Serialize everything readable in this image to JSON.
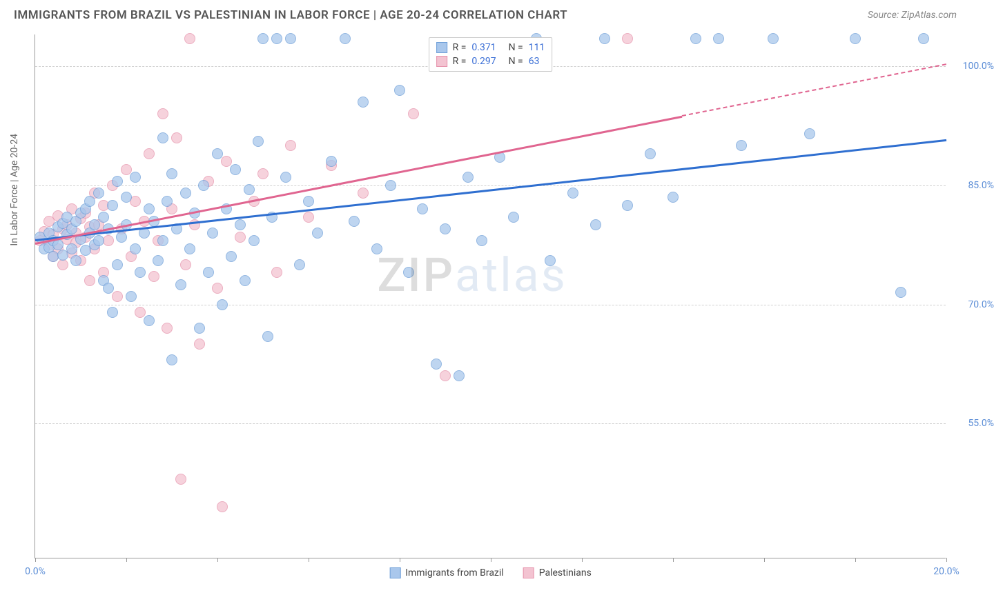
{
  "header": {
    "title": "IMMIGRANTS FROM BRAZIL VS PALESTINIAN IN LABOR FORCE | AGE 20-24 CORRELATION CHART",
    "source": "Source: ZipAtlas.com"
  },
  "chart": {
    "type": "scatter",
    "ylabel": "In Labor Force | Age 20-24",
    "xlim": [
      0,
      20
    ],
    "ylim": [
      38,
      104
    ],
    "xtick_positions": [
      0,
      2,
      4,
      6,
      8,
      10,
      12,
      14,
      16,
      18,
      20
    ],
    "xtick_labels": {
      "0": "0.0%",
      "20": "20.0%"
    },
    "ytick_positions": [
      55,
      70,
      85,
      100
    ],
    "ytick_labels": {
      "55": "55.0%",
      "70": "70.0%",
      "85": "85.0%",
      "100": "100.0%"
    },
    "grid_color": "#d0d0d0",
    "background_color": "#ffffff",
    "axis_color": "#999999",
    "label_color": "#5b8dd6",
    "watermark": {
      "text_dark": "ZIP",
      "text_light": "atlas"
    },
    "series": [
      {
        "name": "Immigrants from Brazil",
        "fill": "#a9c7ec",
        "stroke": "#6f9fd8",
        "trend_color": "#2f6fd0",
        "trend": {
          "x1": 0,
          "y1": 78.2,
          "x2": 20,
          "y2": 90.8
        },
        "r_value": "0.371",
        "n_value": "111",
        "points": [
          [
            0.1,
            78.5
          ],
          [
            0.2,
            77.0
          ],
          [
            0.3,
            79.0
          ],
          [
            0.3,
            77.2
          ],
          [
            0.4,
            78.0
          ],
          [
            0.4,
            76.0
          ],
          [
            0.5,
            79.8
          ],
          [
            0.5,
            77.5
          ],
          [
            0.6,
            80.2
          ],
          [
            0.6,
            76.2
          ],
          [
            0.7,
            81.0
          ],
          [
            0.7,
            78.8
          ],
          [
            0.8,
            77.0
          ],
          [
            0.8,
            79.5
          ],
          [
            0.9,
            80.5
          ],
          [
            0.9,
            75.5
          ],
          [
            1.0,
            81.5
          ],
          [
            1.0,
            78.2
          ],
          [
            1.1,
            82.0
          ],
          [
            1.1,
            76.8
          ],
          [
            1.2,
            79.0
          ],
          [
            1.2,
            83.0
          ],
          [
            1.3,
            77.5
          ],
          [
            1.3,
            80.0
          ],
          [
            1.4,
            84.0
          ],
          [
            1.4,
            78.0
          ],
          [
            1.5,
            73.0
          ],
          [
            1.5,
            81.0
          ],
          [
            1.6,
            72.0
          ],
          [
            1.6,
            79.5
          ],
          [
            1.7,
            69.0
          ],
          [
            1.7,
            82.5
          ],
          [
            1.8,
            85.5
          ],
          [
            1.8,
            75.0
          ],
          [
            1.9,
            78.5
          ],
          [
            2.0,
            80.0
          ],
          [
            2.0,
            83.5
          ],
          [
            2.1,
            71.0
          ],
          [
            2.2,
            77.0
          ],
          [
            2.2,
            86.0
          ],
          [
            2.3,
            74.0
          ],
          [
            2.4,
            79.0
          ],
          [
            2.5,
            82.0
          ],
          [
            2.5,
            68.0
          ],
          [
            2.6,
            80.5
          ],
          [
            2.7,
            75.5
          ],
          [
            2.8,
            91.0
          ],
          [
            2.8,
            78.0
          ],
          [
            2.9,
            83.0
          ],
          [
            3.0,
            63.0
          ],
          [
            3.0,
            86.5
          ],
          [
            3.1,
            79.5
          ],
          [
            3.2,
            72.5
          ],
          [
            3.3,
            84.0
          ],
          [
            3.4,
            77.0
          ],
          [
            3.5,
            81.5
          ],
          [
            3.6,
            67.0
          ],
          [
            3.7,
            85.0
          ],
          [
            3.8,
            74.0
          ],
          [
            3.9,
            79.0
          ],
          [
            4.0,
            89.0
          ],
          [
            4.1,
            70.0
          ],
          [
            4.2,
            82.0
          ],
          [
            4.3,
            76.0
          ],
          [
            4.4,
            87.0
          ],
          [
            4.5,
            80.0
          ],
          [
            4.6,
            73.0
          ],
          [
            4.7,
            84.5
          ],
          [
            4.8,
            78.0
          ],
          [
            4.9,
            90.5
          ],
          [
            5.0,
            103.5
          ],
          [
            5.1,
            66.0
          ],
          [
            5.2,
            81.0
          ],
          [
            5.3,
            103.5
          ],
          [
            5.5,
            86.0
          ],
          [
            5.6,
            103.5
          ],
          [
            5.8,
            75.0
          ],
          [
            6.0,
            83.0
          ],
          [
            6.2,
            79.0
          ],
          [
            6.5,
            88.0
          ],
          [
            6.8,
            103.5
          ],
          [
            7.0,
            80.5
          ],
          [
            7.2,
            95.5
          ],
          [
            7.5,
            77.0
          ],
          [
            7.8,
            85.0
          ],
          [
            8.0,
            97.0
          ],
          [
            8.2,
            74.0
          ],
          [
            8.5,
            82.0
          ],
          [
            8.8,
            62.5
          ],
          [
            9.0,
            79.5
          ],
          [
            9.3,
            61.0
          ],
          [
            9.5,
            86.0
          ],
          [
            9.8,
            78.0
          ],
          [
            10.2,
            88.5
          ],
          [
            10.5,
            81.0
          ],
          [
            11.0,
            103.5
          ],
          [
            11.3,
            75.5
          ],
          [
            11.8,
            84.0
          ],
          [
            12.3,
            80.0
          ],
          [
            12.5,
            103.5
          ],
          [
            13.0,
            82.5
          ],
          [
            13.5,
            89.0
          ],
          [
            14.0,
            83.5
          ],
          [
            14.5,
            103.5
          ],
          [
            15.0,
            103.5
          ],
          [
            15.5,
            90.0
          ],
          [
            16.2,
            103.5
          ],
          [
            17.0,
            91.5
          ],
          [
            18.0,
            103.5
          ],
          [
            19.0,
            71.5
          ],
          [
            19.5,
            103.5
          ]
        ]
      },
      {
        "name": "Palestinians",
        "fill": "#f3c3d1",
        "stroke": "#e693ac",
        "trend_color": "#e06590",
        "trend": {
          "x1": 0,
          "y1": 77.8,
          "x2": 14.2,
          "y2": 93.8
        },
        "trend_dash": {
          "x1": 14.2,
          "y1": 93.8,
          "x2": 20,
          "y2": 100.3
        },
        "r_value": "0.297",
        "n_value": "63",
        "points": [
          [
            0.1,
            78.0
          ],
          [
            0.2,
            79.2
          ],
          [
            0.3,
            77.5
          ],
          [
            0.3,
            80.5
          ],
          [
            0.4,
            76.0
          ],
          [
            0.4,
            78.8
          ],
          [
            0.5,
            81.2
          ],
          [
            0.5,
            77.0
          ],
          [
            0.6,
            79.5
          ],
          [
            0.6,
            75.0
          ],
          [
            0.7,
            80.0
          ],
          [
            0.7,
            78.2
          ],
          [
            0.8,
            82.0
          ],
          [
            0.8,
            76.5
          ],
          [
            0.9,
            79.0
          ],
          [
            0.9,
            77.8
          ],
          [
            1.0,
            80.8
          ],
          [
            1.0,
            75.5
          ],
          [
            1.1,
            78.5
          ],
          [
            1.1,
            81.5
          ],
          [
            1.2,
            73.0
          ],
          [
            1.2,
            79.8
          ],
          [
            1.3,
            84.0
          ],
          [
            1.3,
            77.0
          ],
          [
            1.4,
            80.0
          ],
          [
            1.5,
            74.0
          ],
          [
            1.5,
            82.5
          ],
          [
            1.6,
            78.0
          ],
          [
            1.7,
            85.0
          ],
          [
            1.8,
            71.0
          ],
          [
            1.9,
            79.5
          ],
          [
            2.0,
            87.0
          ],
          [
            2.1,
            76.0
          ],
          [
            2.2,
            83.0
          ],
          [
            2.3,
            69.0
          ],
          [
            2.4,
            80.5
          ],
          [
            2.5,
            89.0
          ],
          [
            2.6,
            73.5
          ],
          [
            2.7,
            78.0
          ],
          [
            2.8,
            94.0
          ],
          [
            2.9,
            67.0
          ],
          [
            3.0,
            82.0
          ],
          [
            3.1,
            91.0
          ],
          [
            3.2,
            48.0
          ],
          [
            3.3,
            75.0
          ],
          [
            3.4,
            103.5
          ],
          [
            3.5,
            80.0
          ],
          [
            3.6,
            65.0
          ],
          [
            3.8,
            85.5
          ],
          [
            4.0,
            72.0
          ],
          [
            4.1,
            44.5
          ],
          [
            4.2,
            88.0
          ],
          [
            4.5,
            78.5
          ],
          [
            4.8,
            83.0
          ],
          [
            5.0,
            86.5
          ],
          [
            5.3,
            74.0
          ],
          [
            5.6,
            90.0
          ],
          [
            6.0,
            81.0
          ],
          [
            6.5,
            87.5
          ],
          [
            7.2,
            84.0
          ],
          [
            8.3,
            94.0
          ],
          [
            9.0,
            61.0
          ],
          [
            13.0,
            103.5
          ]
        ]
      }
    ],
    "legend_bottom": [
      {
        "label": "Immigrants from Brazil",
        "fill": "#a9c7ec",
        "stroke": "#6f9fd8"
      },
      {
        "label": "Palestinians",
        "fill": "#f3c3d1",
        "stroke": "#e693ac"
      }
    ]
  }
}
